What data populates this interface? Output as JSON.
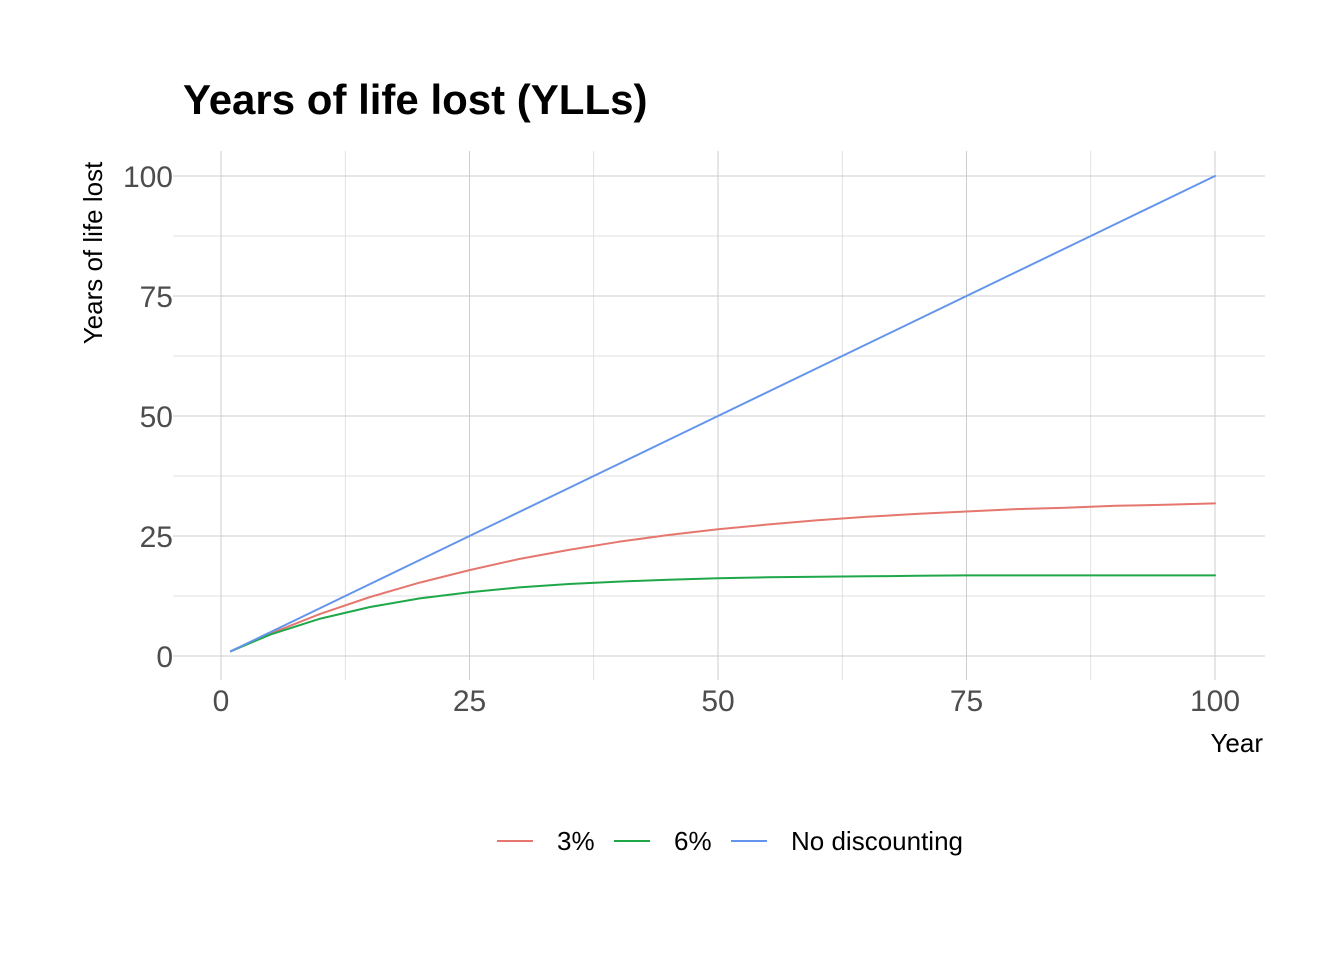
{
  "chart_data": {
    "type": "line",
    "title": "Years of life lost (YLLs)",
    "xlabel": "Year",
    "ylabel": "Years of life lost",
    "xlim": [
      0,
      100
    ],
    "ylim": [
      0,
      100
    ],
    "xticks": [
      0,
      25,
      50,
      75,
      100
    ],
    "yticks": [
      0,
      25,
      50,
      75,
      100
    ],
    "grid": true,
    "legend_position": "bottom",
    "x": [
      1,
      5,
      10,
      15,
      20,
      25,
      30,
      35,
      40,
      45,
      50,
      55,
      60,
      65,
      70,
      75,
      80,
      85,
      90,
      95,
      100
    ],
    "series": [
      {
        "name": "3%",
        "color": "#e5776f",
        "values": [
          1,
          4.7,
          8.8,
          12.3,
          15.3,
          17.9,
          20.2,
          22.1,
          23.8,
          25.2,
          26.4,
          27.4,
          28.3,
          29.0,
          29.6,
          30.1,
          30.6,
          30.9,
          31.3,
          31.5,
          31.8
        ]
      },
      {
        "name": "6%",
        "color": "#1fa84a",
        "values": [
          1,
          4.5,
          7.8,
          10.2,
          12.0,
          13.3,
          14.3,
          15.0,
          15.5,
          15.9,
          16.2,
          16.4,
          16.5,
          16.6,
          16.7,
          16.8,
          16.8,
          16.8,
          16.8,
          16.8,
          16.8
        ]
      },
      {
        "name": "No discounting",
        "color": "#6495ed",
        "values": [
          1,
          5,
          10,
          15,
          20,
          25,
          30,
          35,
          40,
          45,
          50,
          55,
          60,
          65,
          70,
          75,
          80,
          85,
          90,
          95,
          100
        ]
      }
    ]
  }
}
